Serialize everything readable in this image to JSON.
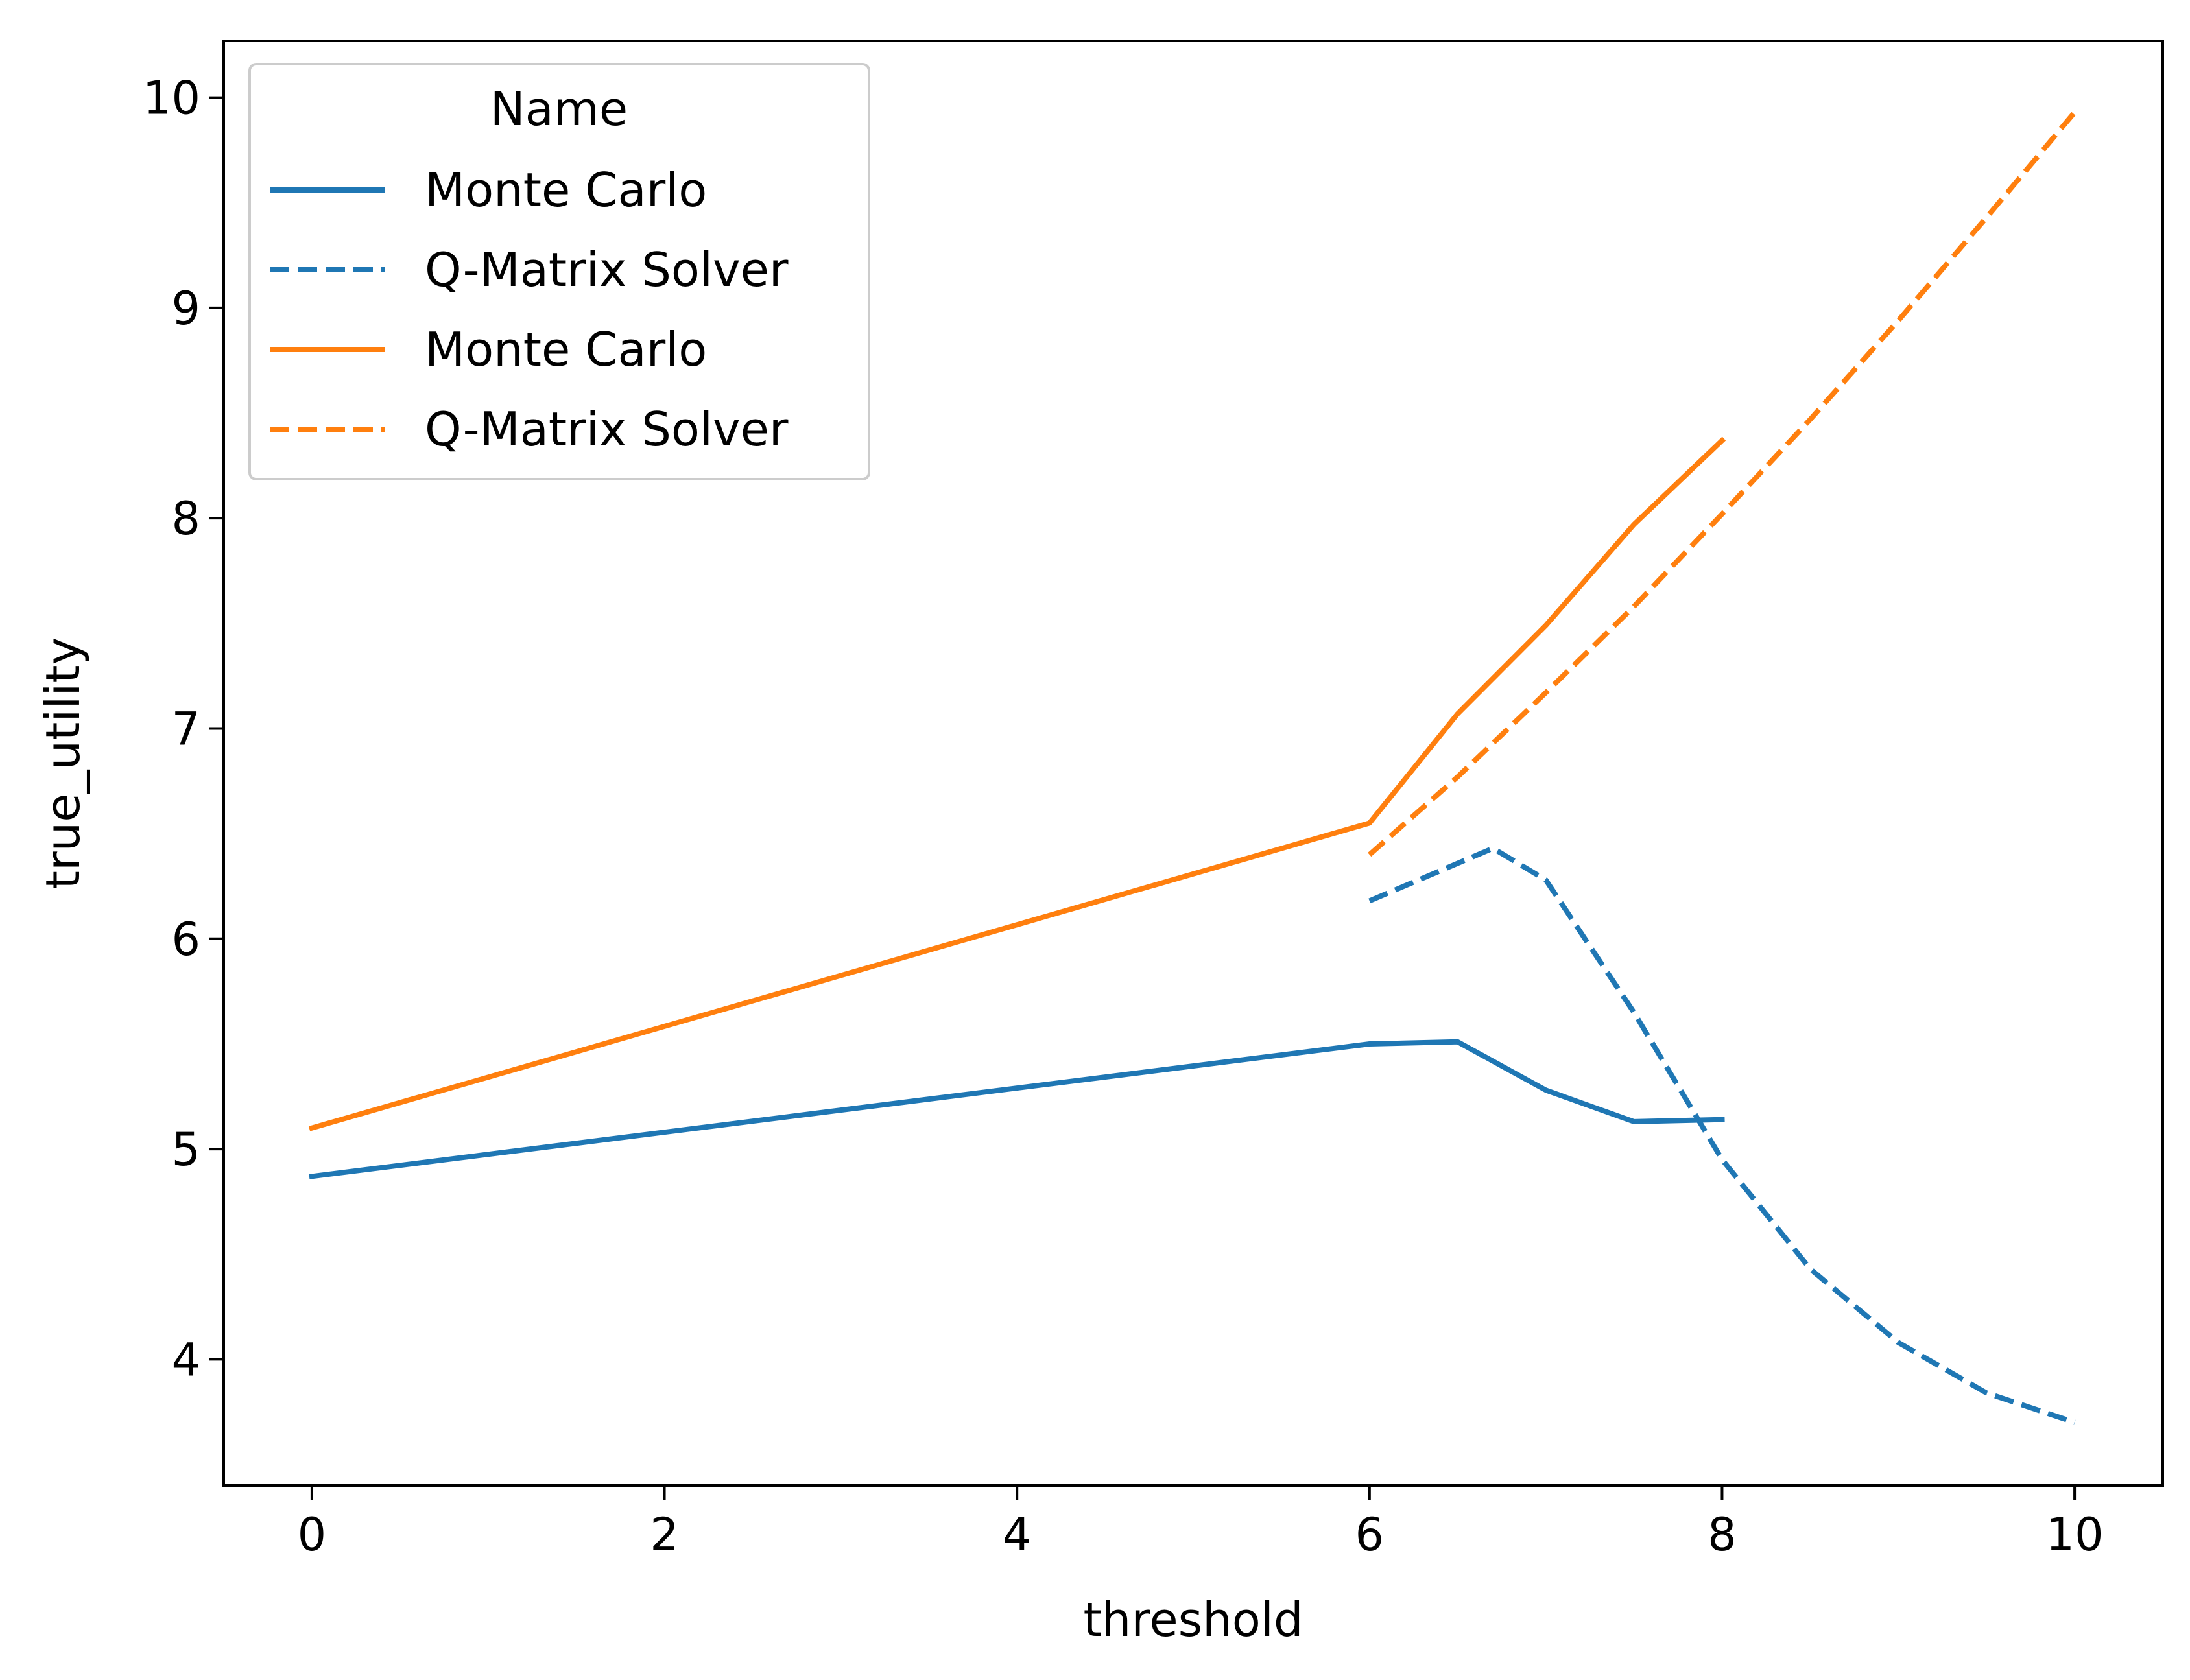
{
  "chart_data": {
    "type": "line",
    "xlabel": "threshold",
    "ylabel": "true_utility",
    "xlim": [
      -0.5,
      10.5
    ],
    "ylim": [
      3.4,
      10.27
    ],
    "x_ticks": [
      0,
      2,
      4,
      6,
      8,
      10
    ],
    "y_ticks": [
      4,
      5,
      6,
      7,
      8,
      9,
      10
    ],
    "grid": false,
    "legend": {
      "title": "Name",
      "placement": "top-left",
      "entries": [
        {
          "label": "Monte Carlo",
          "color": "#1f77b4",
          "style": "solid"
        },
        {
          "label": "Q-Matrix Solver",
          "color": "#1f77b4",
          "style": "dashed"
        },
        {
          "label": "Monte Carlo",
          "color": "#ff7f0e",
          "style": "solid"
        },
        {
          "label": "Q-Matrix Solver",
          "color": "#ff7f0e",
          "style": "dashed"
        }
      ]
    },
    "series": [
      {
        "name": "Monte Carlo",
        "color": "#1f77b4",
        "style": "solid",
        "x": [
          0,
          6,
          6.5,
          7,
          7.5,
          8
        ],
        "y": [
          4.87,
          5.5,
          5.51,
          5.28,
          5.13,
          5.14
        ]
      },
      {
        "name": "Q-Matrix Solver",
        "color": "#1f77b4",
        "style": "dashed",
        "x": [
          6,
          6.7,
          7,
          7.5,
          8,
          8.5,
          9,
          9.5,
          10
        ],
        "y": [
          6.18,
          6.43,
          6.28,
          5.65,
          4.95,
          4.43,
          4.08,
          3.84,
          3.7
        ]
      },
      {
        "name": "Monte Carlo",
        "color": "#ff7f0e",
        "style": "solid",
        "x": [
          0,
          6,
          6.5,
          7,
          7.5,
          8
        ],
        "y": [
          5.1,
          6.55,
          7.07,
          7.49,
          7.97,
          8.37
        ]
      },
      {
        "name": "Q-Matrix Solver",
        "color": "#ff7f0e",
        "style": "dashed",
        "x": [
          6,
          6.5,
          7,
          7.5,
          8,
          8.5,
          9,
          9.5,
          10
        ],
        "y": [
          6.4,
          6.77,
          7.17,
          7.58,
          8.02,
          8.47,
          8.94,
          9.43,
          9.93
        ]
      }
    ]
  }
}
